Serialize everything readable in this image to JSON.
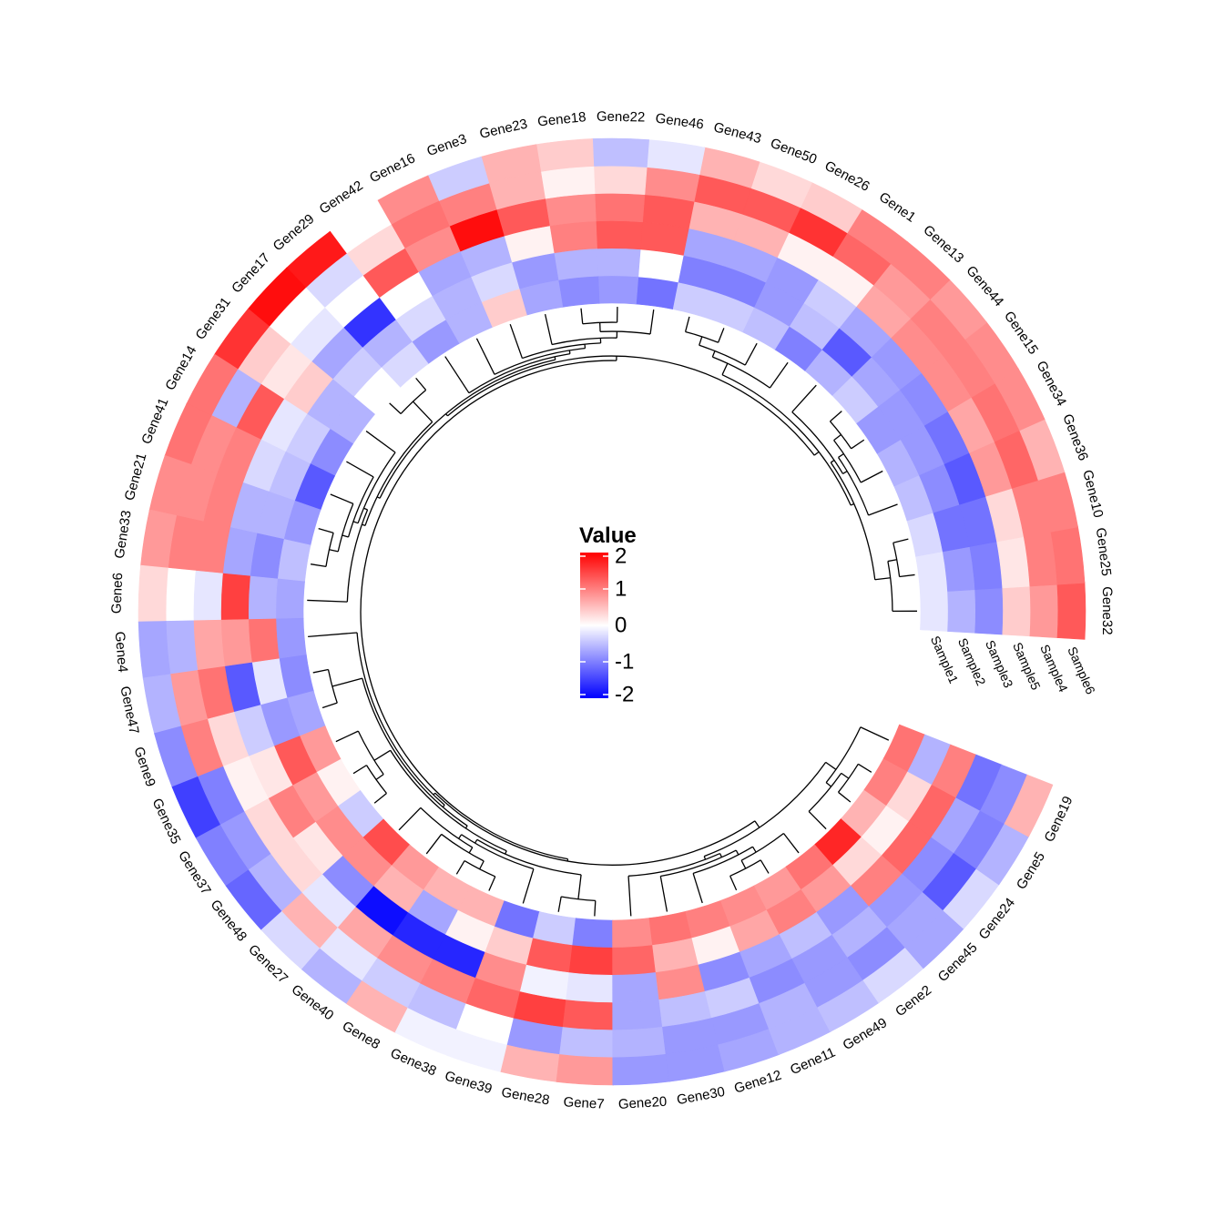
{
  "chart_data": {
    "type": "heatmap",
    "layout": "circular",
    "title": "",
    "legend": {
      "title": "Value",
      "ticks": [
        2,
        1,
        0,
        -1,
        -2
      ],
      "tick_labels": [
        "2",
        "1",
        "0",
        "-1",
        "-2"
      ],
      "placement": "center",
      "colors": {
        "low": "#0000ff",
        "mid": "#ffffff",
        "high": "#ff0000"
      },
      "range": [
        -2,
        2
      ]
    },
    "samples": [
      "Sample1",
      "Sample2",
      "Sample3",
      "Sample5",
      "Sample4",
      "Sample6"
    ],
    "genes": [
      "Gene32",
      "Gene25",
      "Gene10",
      "Gene36",
      "Gene34",
      "Gene15",
      "Gene44",
      "Gene13",
      "Gene1",
      "Gene26",
      "Gene50",
      "Gene43",
      "Gene46",
      "Gene22",
      "Gene18",
      "Gene23",
      "Gene3",
      "Gene16",
      "Gene42",
      "Gene29",
      "Gene17",
      "Gene31",
      "Gene14",
      "Gene41",
      "Gene21",
      "Gene33",
      "Gene6",
      "Gene4",
      "Gene47",
      "Gene9",
      "Gene35",
      "Gene37",
      "Gene48",
      "Gene27",
      "Gene40",
      "Gene8",
      "Gene38",
      "Gene39",
      "Gene28",
      "Gene7",
      "Gene20",
      "Gene30",
      "Gene12",
      "Gene11",
      "Gene49",
      "Gene2",
      "Gene45",
      "Gene24",
      "Gene5",
      "Gene19"
    ],
    "values": [
      [
        -0.2,
        -0.6,
        -0.9,
        0.4,
        0.8,
        1.3
      ],
      [
        -0.2,
        -0.8,
        -1.0,
        0.2,
        1.0,
        1.1
      ],
      [
        -0.3,
        -1.1,
        -1.1,
        0.3,
        1.0,
        1.0
      ],
      [
        -0.5,
        -0.9,
        -1.3,
        0.8,
        1.2,
        0.6
      ],
      [
        -0.6,
        -0.8,
        -1.1,
        0.7,
        1.1,
        0.9
      ],
      [
        -0.8,
        -0.8,
        -0.9,
        0.9,
        1.0,
        0.9
      ],
      [
        -0.4,
        -0.7,
        -0.8,
        0.9,
        1.0,
        0.8
      ],
      [
        -0.6,
        -1.3,
        -0.7,
        0.7,
        0.8,
        1.0
      ],
      [
        -1.0,
        -0.5,
        -0.4,
        0.1,
        1.2,
        1.0
      ],
      [
        -0.5,
        -0.8,
        -0.8,
        0.1,
        1.6,
        0.4
      ],
      [
        -0.4,
        -1.0,
        -0.7,
        0.6,
        1.3,
        0.3
      ],
      [
        -0.4,
        -1.0,
        -0.7,
        0.6,
        1.3,
        0.6
      ],
      [
        -1.1,
        0.0,
        1.3,
        1.3,
        0.9,
        -0.2
      ],
      [
        -0.8,
        -0.6,
        1.3,
        1.1,
        0.3,
        -0.5
      ],
      [
        -0.9,
        -0.6,
        1.0,
        0.9,
        0.1,
        0.4
      ],
      [
        -0.7,
        -0.8,
        0.1,
        1.3,
        0.6,
        0.6
      ],
      [
        0.4,
        -0.3,
        -0.6,
        1.9,
        1.0,
        -0.4
      ],
      [
        -0.6,
        -0.6,
        -0.7,
        0.9,
        1.1,
        0.9
      ],
      [
        -0.8,
        -0.3,
        0.0,
        1.3,
        0.3,
        0.0
      ],
      [
        -0.3,
        -0.6,
        -1.6,
        0.0,
        -0.3,
        1.8
      ],
      [
        0.0,
        -0.4,
        -0.7,
        -0.2,
        0.0,
        1.9
      ],
      [
        -0.6,
        -0.6,
        0.4,
        0.2,
        0.4,
        1.6
      ],
      [
        -0.9,
        -0.4,
        -0.2,
        1.3,
        -0.6,
        1.1
      ],
      [
        -1.3,
        -0.5,
        -0.3,
        1.0,
        0.9,
        1.1
      ],
      [
        -0.8,
        -0.6,
        -0.6,
        1.0,
        0.9,
        0.9
      ],
      [
        -0.5,
        -0.9,
        -0.7,
        1.0,
        1.0,
        0.8
      ],
      [
        -0.7,
        -0.6,
        1.5,
        -0.2,
        0.0,
        0.3
      ],
      [
        -0.8,
        1.1,
        0.8,
        0.7,
        -0.6,
        -0.7
      ],
      [
        -0.9,
        -0.2,
        -1.3,
        1.1,
        0.8,
        -0.6
      ],
      [
        -0.7,
        -0.8,
        -0.4,
        0.3,
        1.0,
        -0.9
      ],
      [
        0.8,
        1.3,
        0.2,
        0.1,
        -1.0,
        -1.5
      ],
      [
        0.1,
        0.8,
        1.0,
        0.3,
        -0.8,
        -1.0
      ],
      [
        -0.4,
        0.9,
        0.2,
        0.3,
        -0.6,
        -1.2
      ],
      [
        1.4,
        0.9,
        -0.9,
        -0.2,
        0.6,
        -0.3
      ],
      [
        0.8,
        0.6,
        -1.9,
        0.7,
        -0.2,
        -0.6
      ],
      [
        0.6,
        -0.7,
        -1.7,
        0.9,
        -0.4,
        0.6
      ],
      [
        0.6,
        0.1,
        -1.7,
        1.0,
        -0.5,
        -0.1
      ],
      [
        -1.1,
        0.4,
        0.9,
        1.2,
        0.0,
        -0.1
      ],
      [
        -0.4,
        1.3,
        -0.1,
        1.5,
        -0.8,
        0.6
      ],
      [
        -1.0,
        1.5,
        -0.2,
        1.3,
        -0.5,
        0.8
      ],
      [
        0.9,
        1.2,
        -0.7,
        -0.7,
        -0.6,
        -0.8
      ],
      [
        1.1,
        0.6,
        0.9,
        -0.5,
        -0.8,
        -0.8
      ],
      [
        1.0,
        0.1,
        -0.9,
        -0.4,
        -0.8,
        -0.7
      ],
      [
        0.9,
        0.7,
        -0.7,
        -0.9,
        -0.6,
        -0.6
      ],
      [
        0.8,
        1.0,
        -0.5,
        -0.8,
        -0.8,
        -0.5
      ],
      [
        1.1,
        0.8,
        -0.8,
        -0.6,
        -0.9,
        -0.3
      ],
      [
        1.7,
        0.3,
        1.0,
        -0.8,
        -0.7,
        -0.7
      ],
      [
        0.6,
        0.1,
        1.2,
        -0.9,
        -1.3,
        -0.3
      ],
      [
        1.0,
        0.3,
        1.2,
        -0.7,
        -1.0,
        -0.6
      ],
      [
        1.1,
        -0.6,
        1.0,
        -1.1,
        -0.9,
        0.6
      ]
    ]
  }
}
